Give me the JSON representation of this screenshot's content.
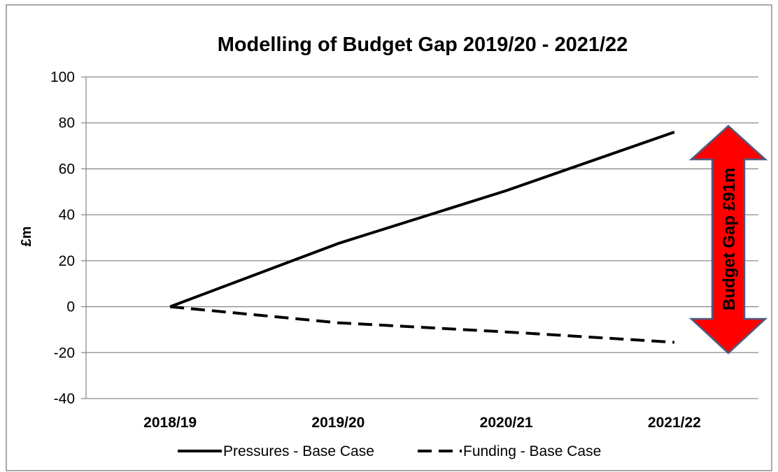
{
  "chart_data": {
    "type": "line",
    "title": "Modelling of Budget Gap 2019/20 - 2021/22",
    "xlabel": "",
    "ylabel": "£m",
    "categories": [
      "2018/19",
      "2019/20",
      "2020/21",
      "2021/22"
    ],
    "ylim": [
      -40,
      100
    ],
    "yticks": [
      -40,
      -20,
      0,
      20,
      40,
      60,
      80,
      100
    ],
    "grid": true,
    "legend_position": "bottom",
    "series": [
      {
        "name": "Pressures - Base Case",
        "values": [
          0,
          27.5,
          50.5,
          76
        ],
        "color": "#000000",
        "style": "solid"
      },
      {
        "name": "Funding - Base Case",
        "values": [
          0,
          -7,
          -11,
          -15.5
        ],
        "color": "#000000",
        "style": "dashed"
      }
    ],
    "annotation": {
      "text": "Budget Gap £91m",
      "shape": "double-headed-arrow",
      "fill": "#ff0000",
      "outline": "#4a5f82"
    }
  }
}
